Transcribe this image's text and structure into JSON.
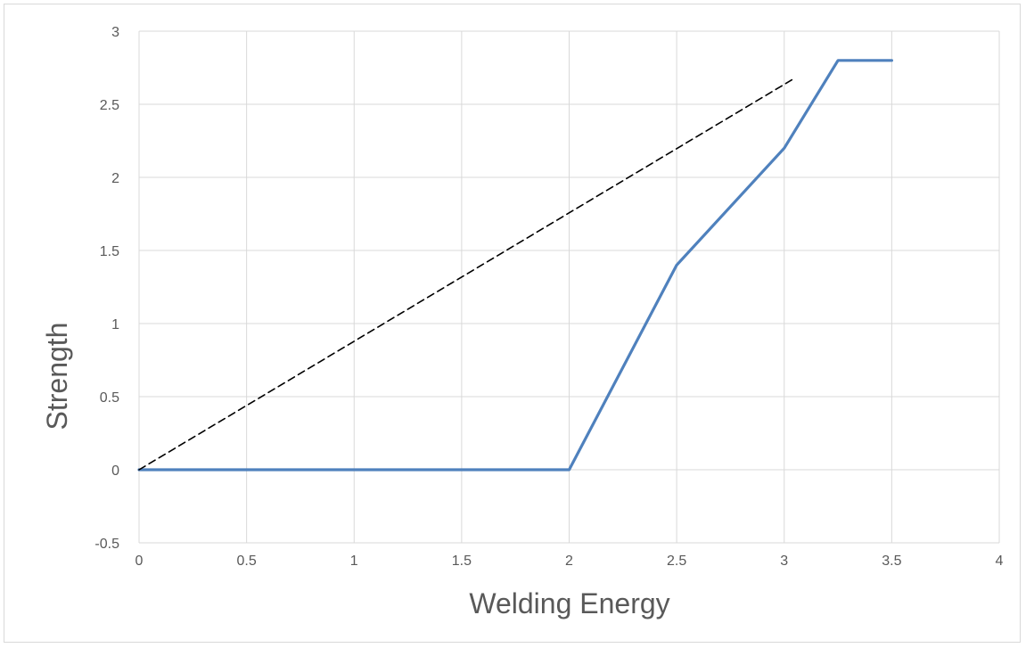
{
  "chart_data": {
    "type": "line",
    "title": "",
    "xlabel": "Welding Energy",
    "ylabel": "Strength",
    "xlim": [
      0,
      4
    ],
    "ylim": [
      -0.5,
      3
    ],
    "x_ticks": [
      "0",
      "0.5",
      "1",
      "1.5",
      "2",
      "2.5",
      "3",
      "3.5",
      "4"
    ],
    "y_ticks": [
      "-0.5",
      "0",
      "0.5",
      "1",
      "1.5",
      "2",
      "2.5",
      "3"
    ],
    "grid": true,
    "legend": "none",
    "series": [
      {
        "style": "solid",
        "color": "#4f81bd",
        "x": [
          0,
          0.5,
          1,
          1.5,
          2,
          2.5,
          3,
          3.25,
          3.5
        ],
        "y": [
          0,
          0,
          0,
          0,
          0,
          1.4,
          2.2,
          2.8,
          2.8
        ]
      },
      {
        "style": "dashed",
        "color": "#000000",
        "x": [
          0,
          3.05
        ],
        "y": [
          0,
          2.68
        ]
      }
    ]
  }
}
